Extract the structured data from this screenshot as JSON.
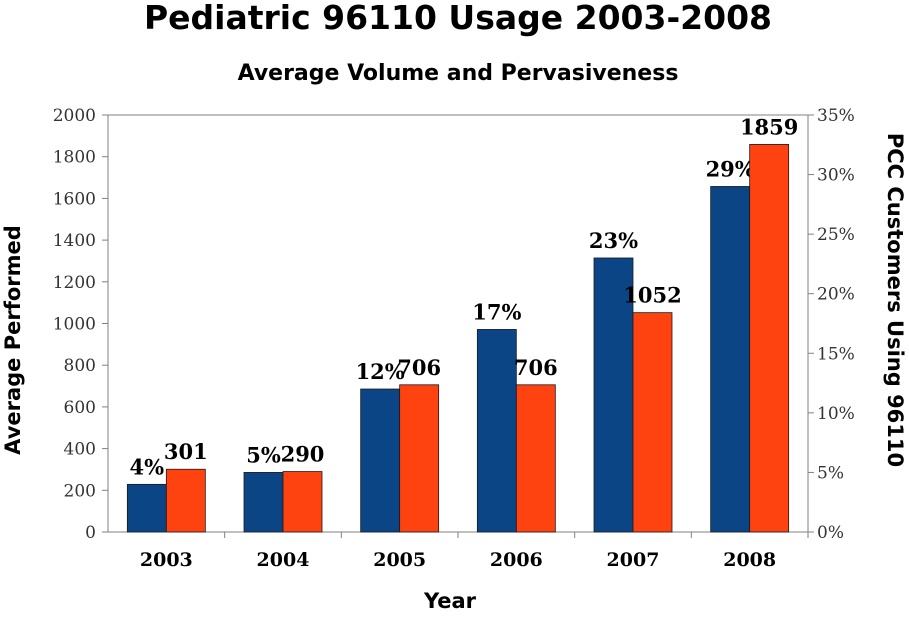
{
  "chart_data": {
    "type": "bar",
    "title": "Pediatric 96110 Usage 2003-2008",
    "subtitle": "Average Volume and Pervasiveness",
    "xlabel": "Year",
    "ylabel": "Average Performed",
    "y2label": "PCC Customers Using 96110",
    "categories": [
      "2003",
      "2004",
      "2005",
      "2006",
      "2007",
      "2008"
    ],
    "ylim": [
      0,
      2000
    ],
    "yticks": [
      "0",
      "200",
      "400",
      "600",
      "800",
      "1000",
      "1200",
      "1400",
      "1600",
      "1800",
      "2000"
    ],
    "y2lim": [
      0,
      35
    ],
    "y2ticks": [
      "0%",
      "5%",
      "10%",
      "15%",
      "20%",
      "25%",
      "30%",
      "35%"
    ],
    "grid": false,
    "series": [
      {
        "axis": "right",
        "color": "#0b4586",
        "values": [
          4,
          5,
          12,
          17,
          23,
          29
        ],
        "labels": [
          "4%",
          "5%",
          "12%",
          "17%",
          "23%",
          "29%"
        ]
      },
      {
        "axis": "left",
        "color": "#ff4310",
        "values": [
          301,
          290,
          706,
          706,
          1052,
          1859
        ],
        "labels": [
          "301",
          "290",
          "706",
          "706",
          "1052",
          "1859"
        ]
      }
    ]
  }
}
